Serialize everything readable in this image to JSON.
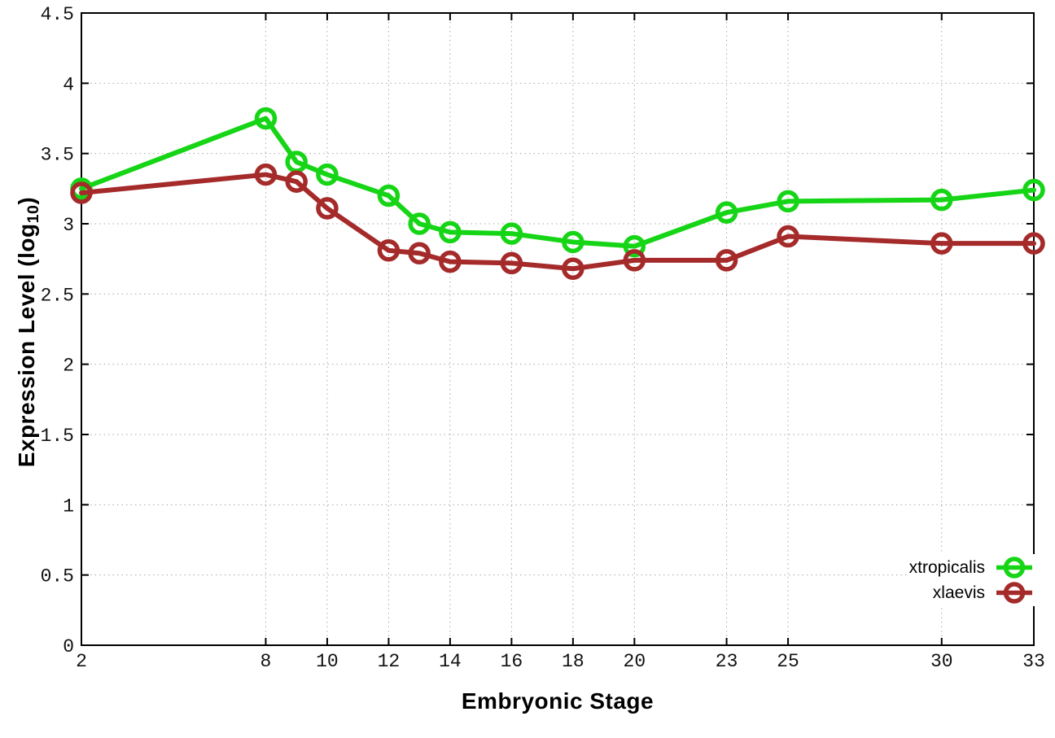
{
  "chart_data": {
    "type": "line",
    "title": "",
    "xlabel": "Embryonic Stage",
    "ylabel": "Expression Level (log10)",
    "ylabel_parts": {
      "pre": "Expression Level (log",
      "sub": "10",
      "post": ")"
    },
    "xlim": [
      2,
      33
    ],
    "ylim": [
      0,
      4.5
    ],
    "x_ticks": [
      2,
      8,
      10,
      12,
      14,
      16,
      18,
      20,
      23,
      25,
      30,
      33
    ],
    "y_ticks": [
      0,
      0.5,
      1,
      1.5,
      2,
      2.5,
      3,
      3.5,
      4,
      4.5
    ],
    "grid": true,
    "legend_position": "inside-bottom-right",
    "x": [
      2,
      8,
      9,
      10,
      12,
      13,
      14,
      16,
      18,
      20,
      23,
      25,
      30,
      33
    ],
    "series": [
      {
        "name": "xtropicalis",
        "color": "#16d516",
        "values": [
          3.25,
          3.75,
          3.44,
          3.35,
          3.2,
          3.0,
          2.94,
          2.93,
          2.87,
          2.84,
          3.08,
          3.16,
          3.17,
          3.24
        ]
      },
      {
        "name": "xlaevis",
        "color": "#a52a2a",
        "values": [
          3.22,
          3.35,
          3.3,
          3.11,
          2.81,
          2.79,
          2.73,
          2.72,
          2.68,
          2.74,
          2.74,
          2.91,
          2.86,
          2.86
        ]
      }
    ],
    "style": {
      "grid_color": "#a8a8a8",
      "axis_color": "#000000",
      "line_width": 6,
      "marker_radius": 11,
      "marker_stroke": 5.5
    }
  }
}
